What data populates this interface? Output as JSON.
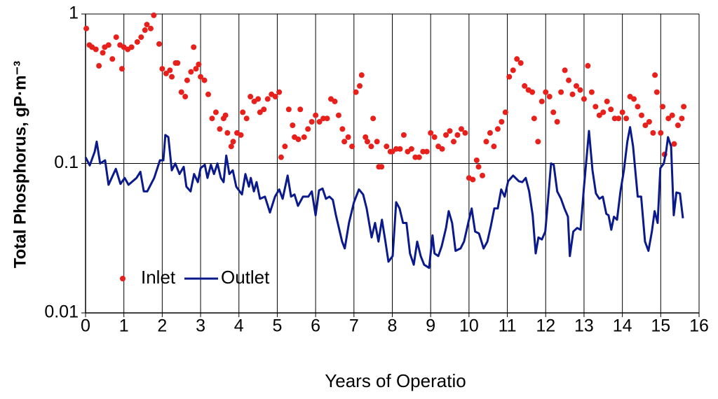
{
  "chart_data": {
    "type": "line",
    "xlabel": "Years of Operatio",
    "ylabel": "Total Phosphorus, gP·m⁻³",
    "xlim": [
      0,
      16
    ],
    "xticks": [
      0,
      1,
      2,
      3,
      4,
      5,
      6,
      7,
      8,
      9,
      10,
      11,
      12,
      13,
      14,
      15,
      16
    ],
    "ylim": [
      0.01,
      1
    ],
    "yticks": [
      0.01,
      0.1,
      1
    ],
    "yscale": "log",
    "grid": true,
    "legend": "lower left",
    "series": [
      {
        "name": "Inlet",
        "type": "scatter",
        "color": "#e8201c",
        "x": [
          0.02,
          0.1,
          0.17,
          0.27,
          0.35,
          0.45,
          0.5,
          0.6,
          0.7,
          0.8,
          0.9,
          0.95,
          1.0,
          1.1,
          1.2,
          1.35,
          1.45,
          1.55,
          1.6,
          1.7,
          1.78,
          1.92,
          2.0,
          2.1,
          2.2,
          2.25,
          2.35,
          2.4,
          2.5,
          2.6,
          2.65,
          2.75,
          2.82,
          2.88,
          2.95,
          3.0,
          3.1,
          3.2,
          3.3,
          3.4,
          3.5,
          3.6,
          3.65,
          3.7,
          3.8,
          3.85,
          3.95,
          4.05,
          4.1,
          4.2,
          4.3,
          4.4,
          4.5,
          4.55,
          4.65,
          4.75,
          4.85,
          4.95,
          5.05,
          5.1,
          5.2,
          5.3,
          5.4,
          5.45,
          5.55,
          5.6,
          5.7,
          5.8,
          5.9,
          6.0,
          6.1,
          6.2,
          6.3,
          6.4,
          6.5,
          6.6,
          6.7,
          6.75,
          6.85,
          6.95,
          7.05,
          7.15,
          7.2,
          7.3,
          7.35,
          7.45,
          7.5,
          7.6,
          7.65,
          7.72,
          7.85,
          7.95,
          8.0,
          8.1,
          8.2,
          8.3,
          8.4,
          8.5,
          8.6,
          8.7,
          8.8,
          8.9,
          9.0,
          9.1,
          9.2,
          9.3,
          9.4,
          9.5,
          9.6,
          9.7,
          9.8,
          9.9,
          10.0,
          10.1,
          10.2,
          10.25,
          10.35,
          10.45,
          10.55,
          10.65,
          10.75,
          10.85,
          10.95,
          11.05,
          11.15,
          11.25,
          11.35,
          11.45,
          11.55,
          11.65,
          11.7,
          11.8,
          11.9,
          12.0,
          12.1,
          12.2,
          12.3,
          12.4,
          12.5,
          12.6,
          12.7,
          12.8,
          12.9,
          13.0,
          13.1,
          13.2,
          13.3,
          13.4,
          13.5,
          13.6,
          13.7,
          13.8,
          13.9,
          14.0,
          14.1,
          14.2,
          14.3,
          14.4,
          14.5,
          14.6,
          14.7,
          14.8,
          14.85,
          14.9,
          15.0,
          15.05,
          15.1,
          15.2,
          15.3,
          15.35,
          15.45,
          15.55,
          15.6
        ],
        "values": [
          0.8,
          0.62,
          0.6,
          0.58,
          0.45,
          0.55,
          0.6,
          0.62,
          0.5,
          0.7,
          0.62,
          0.43,
          0.6,
          0.58,
          0.6,
          0.65,
          0.7,
          0.78,
          0.85,
          0.8,
          0.98,
          0.63,
          0.43,
          0.4,
          0.42,
          0.38,
          0.47,
          0.47,
          0.3,
          0.28,
          0.36,
          0.41,
          0.6,
          0.43,
          0.46,
          0.38,
          0.36,
          0.29,
          0.2,
          0.22,
          0.17,
          0.2,
          0.21,
          0.16,
          0.13,
          0.14,
          0.16,
          0.155,
          0.22,
          0.2,
          0.28,
          0.26,
          0.27,
          0.22,
          0.23,
          0.27,
          0.29,
          0.28,
          0.3,
          0.11,
          0.13,
          0.23,
          0.18,
          0.15,
          0.145,
          0.23,
          0.15,
          0.17,
          0.19,
          0.21,
          0.19,
          0.2,
          0.2,
          0.27,
          0.26,
          0.21,
          0.17,
          0.14,
          0.15,
          0.13,
          0.3,
          0.33,
          0.39,
          0.15,
          0.14,
          0.13,
          0.2,
          0.14,
          0.095,
          0.095,
          0.13,
          0.12,
          0.12,
          0.125,
          0.125,
          0.155,
          0.12,
          0.125,
          0.11,
          0.11,
          0.12,
          0.12,
          0.16,
          0.15,
          0.13,
          0.125,
          0.155,
          0.165,
          0.14,
          0.155,
          0.17,
          0.16,
          0.08,
          0.078,
          0.105,
          0.095,
          0.083,
          0.14,
          0.16,
          0.13,
          0.17,
          0.19,
          0.22,
          0.38,
          0.42,
          0.5,
          0.47,
          0.33,
          0.31,
          0.3,
          0.2,
          0.14,
          0.26,
          0.3,
          0.28,
          0.22,
          0.19,
          0.3,
          0.42,
          0.36,
          0.29,
          0.33,
          0.31,
          0.27,
          0.45,
          0.3,
          0.24,
          0.21,
          0.22,
          0.26,
          0.23,
          0.2,
          0.2,
          0.22,
          0.2,
          0.28,
          0.27,
          0.24,
          0.21,
          0.18,
          0.19,
          0.16,
          0.39,
          0.3,
          0.16,
          0.24,
          0.115,
          0.2,
          0.21,
          0.135,
          0.18,
          0.2,
          0.24
        ]
      },
      {
        "name": "Outlet",
        "type": "line",
        "color": "#0a1a8c",
        "x": [
          0.0,
          0.11,
          0.24,
          0.29,
          0.38,
          0.51,
          0.6,
          0.79,
          0.91,
          1.02,
          1.12,
          1.33,
          1.43,
          1.52,
          1.61,
          1.79,
          1.94,
          2.03,
          2.08,
          2.16,
          2.25,
          2.34,
          2.45,
          2.56,
          2.63,
          2.74,
          2.83,
          2.93,
          3.0,
          3.11,
          3.18,
          3.27,
          3.35,
          3.44,
          3.53,
          3.6,
          3.67,
          3.75,
          3.84,
          3.93,
          4.08,
          4.17,
          4.26,
          4.31,
          4.39,
          4.46,
          4.55,
          4.68,
          4.81,
          4.94,
          5.05,
          5.14,
          5.27,
          5.36,
          5.45,
          5.54,
          5.67,
          5.81,
          5.9,
          6.0,
          6.09,
          6.18,
          6.27,
          6.36,
          6.45,
          6.53,
          6.69,
          6.76,
          6.87,
          7.0,
          7.13,
          7.24,
          7.33,
          7.46,
          7.55,
          7.64,
          7.73,
          7.82,
          7.9,
          8.01,
          8.1,
          8.19,
          8.28,
          8.37,
          8.46,
          8.56,
          8.65,
          8.74,
          8.83,
          8.96,
          9.05,
          9.1,
          9.2,
          9.29,
          9.4,
          9.47,
          9.56,
          9.65,
          9.78,
          9.87,
          9.98,
          10.07,
          10.16,
          10.26,
          10.38,
          10.48,
          10.57,
          10.66,
          10.75,
          10.84,
          10.93,
          11.02,
          11.15,
          11.3,
          11.39,
          11.48,
          11.57,
          11.66,
          11.74,
          11.81,
          11.9,
          11.99,
          12.08,
          12.14,
          12.21,
          12.3,
          12.4,
          12.49,
          12.58,
          12.63,
          12.72,
          12.82,
          12.91,
          13.0,
          13.13,
          13.22,
          13.31,
          13.4,
          13.49,
          13.58,
          13.64,
          13.71,
          13.78,
          13.86,
          13.95,
          14.04,
          14.13,
          14.2,
          14.28,
          14.4,
          14.49,
          14.59,
          14.68,
          14.77,
          14.84,
          14.92,
          14.99,
          15.08,
          15.14,
          15.19,
          15.27,
          15.34,
          15.41,
          15.5,
          15.58
        ],
        "values": [
          0.11,
          0.097,
          0.12,
          0.14,
          0.1,
          0.105,
          0.072,
          0.092,
          0.073,
          0.08,
          0.072,
          0.08,
          0.088,
          0.065,
          0.065,
          0.08,
          0.105,
          0.105,
          0.155,
          0.15,
          0.09,
          0.1,
          0.085,
          0.095,
          0.07,
          0.065,
          0.085,
          0.075,
          0.093,
          0.098,
          0.08,
          0.098,
          0.085,
          0.1,
          0.08,
          0.075,
          0.113,
          0.085,
          0.09,
          0.07,
          0.062,
          0.085,
          0.07,
          0.08,
          0.065,
          0.075,
          0.058,
          0.06,
          0.047,
          0.06,
          0.067,
          0.058,
          0.083,
          0.06,
          0.062,
          0.052,
          0.06,
          0.06,
          0.065,
          0.045,
          0.066,
          0.068,
          0.058,
          0.06,
          0.057,
          0.045,
          0.03,
          0.027,
          0.04,
          0.055,
          0.067,
          0.062,
          0.05,
          0.032,
          0.04,
          0.03,
          0.042,
          0.03,
          0.022,
          0.024,
          0.055,
          0.05,
          0.04,
          0.04,
          0.025,
          0.021,
          0.03,
          0.024,
          0.021,
          0.02,
          0.033,
          0.025,
          0.024,
          0.028,
          0.037,
          0.048,
          0.04,
          0.026,
          0.027,
          0.03,
          0.04,
          0.05,
          0.035,
          0.034,
          0.027,
          0.03,
          0.038,
          0.05,
          0.05,
          0.067,
          0.06,
          0.076,
          0.083,
          0.076,
          0.075,
          0.08,
          0.065,
          0.045,
          0.025,
          0.032,
          0.031,
          0.035,
          0.065,
          0.1,
          0.098,
          0.065,
          0.058,
          0.05,
          0.044,
          0.024,
          0.035,
          0.037,
          0.036,
          0.07,
          0.165,
          0.09,
          0.063,
          0.058,
          0.06,
          0.046,
          0.045,
          0.036,
          0.044,
          0.042,
          0.065,
          0.09,
          0.14,
          0.175,
          0.13,
          0.06,
          0.06,
          0.03,
          0.026,
          0.035,
          0.048,
          0.04,
          0.093,
          0.1,
          0.12,
          0.15,
          0.13,
          0.045,
          0.064,
          0.063,
          0.043
        ]
      }
    ]
  }
}
